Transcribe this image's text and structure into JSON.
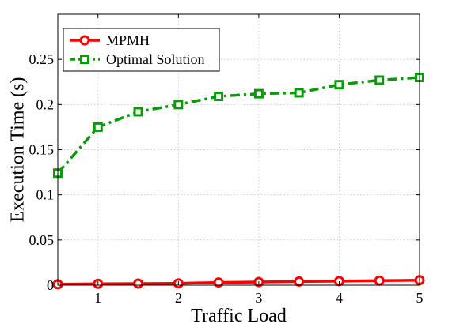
{
  "chart_data": {
    "type": "line",
    "x": [
      0.5,
      1,
      1.5,
      2,
      2.5,
      3,
      3.5,
      4,
      4.5,
      5
    ],
    "series": [
      {
        "name": "MPMH",
        "values": [
          0.001,
          0.0015,
          0.0018,
          0.002,
          0.003,
          0.0035,
          0.004,
          0.0045,
          0.005,
          0.0055
        ],
        "color": "#ff0000",
        "line_style": "solid",
        "marker": "circle"
      },
      {
        "name": "Optimal Solution",
        "values": [
          0.124,
          0.175,
          0.192,
          0.2,
          0.209,
          0.212,
          0.213,
          0.222,
          0.227,
          0.23
        ],
        "color": "#0a9a0a",
        "line_style": "dash-dot",
        "marker": "square"
      }
    ],
    "xlabel": "Traffic Load",
    "ylabel": "Execution Time (s)",
    "xlim": [
      0.5,
      5
    ],
    "ylim": [
      0,
      0.3
    ],
    "x_ticks": [
      1,
      2,
      3,
      4,
      5
    ],
    "x_tick_labels": [
      "1",
      "2",
      "3",
      "4",
      "5"
    ],
    "y_ticks": [
      0,
      0.05,
      0.1,
      0.15,
      0.2,
      0.25
    ],
    "y_tick_labels": [
      "0",
      "0.05",
      "0.1",
      "0.15",
      "0.2",
      "0.25"
    ],
    "grid": true,
    "legend_position": "top-left"
  }
}
